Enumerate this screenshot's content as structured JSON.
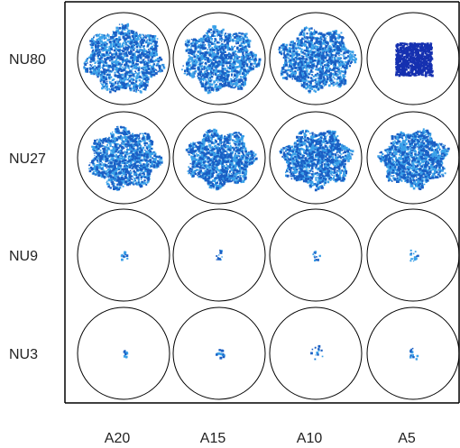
{
  "row_labels": [
    "NU80",
    "NU27",
    "NU9",
    "NU3"
  ],
  "column_labels": [
    "A20",
    "A15",
    "A10",
    "A5"
  ]
}
